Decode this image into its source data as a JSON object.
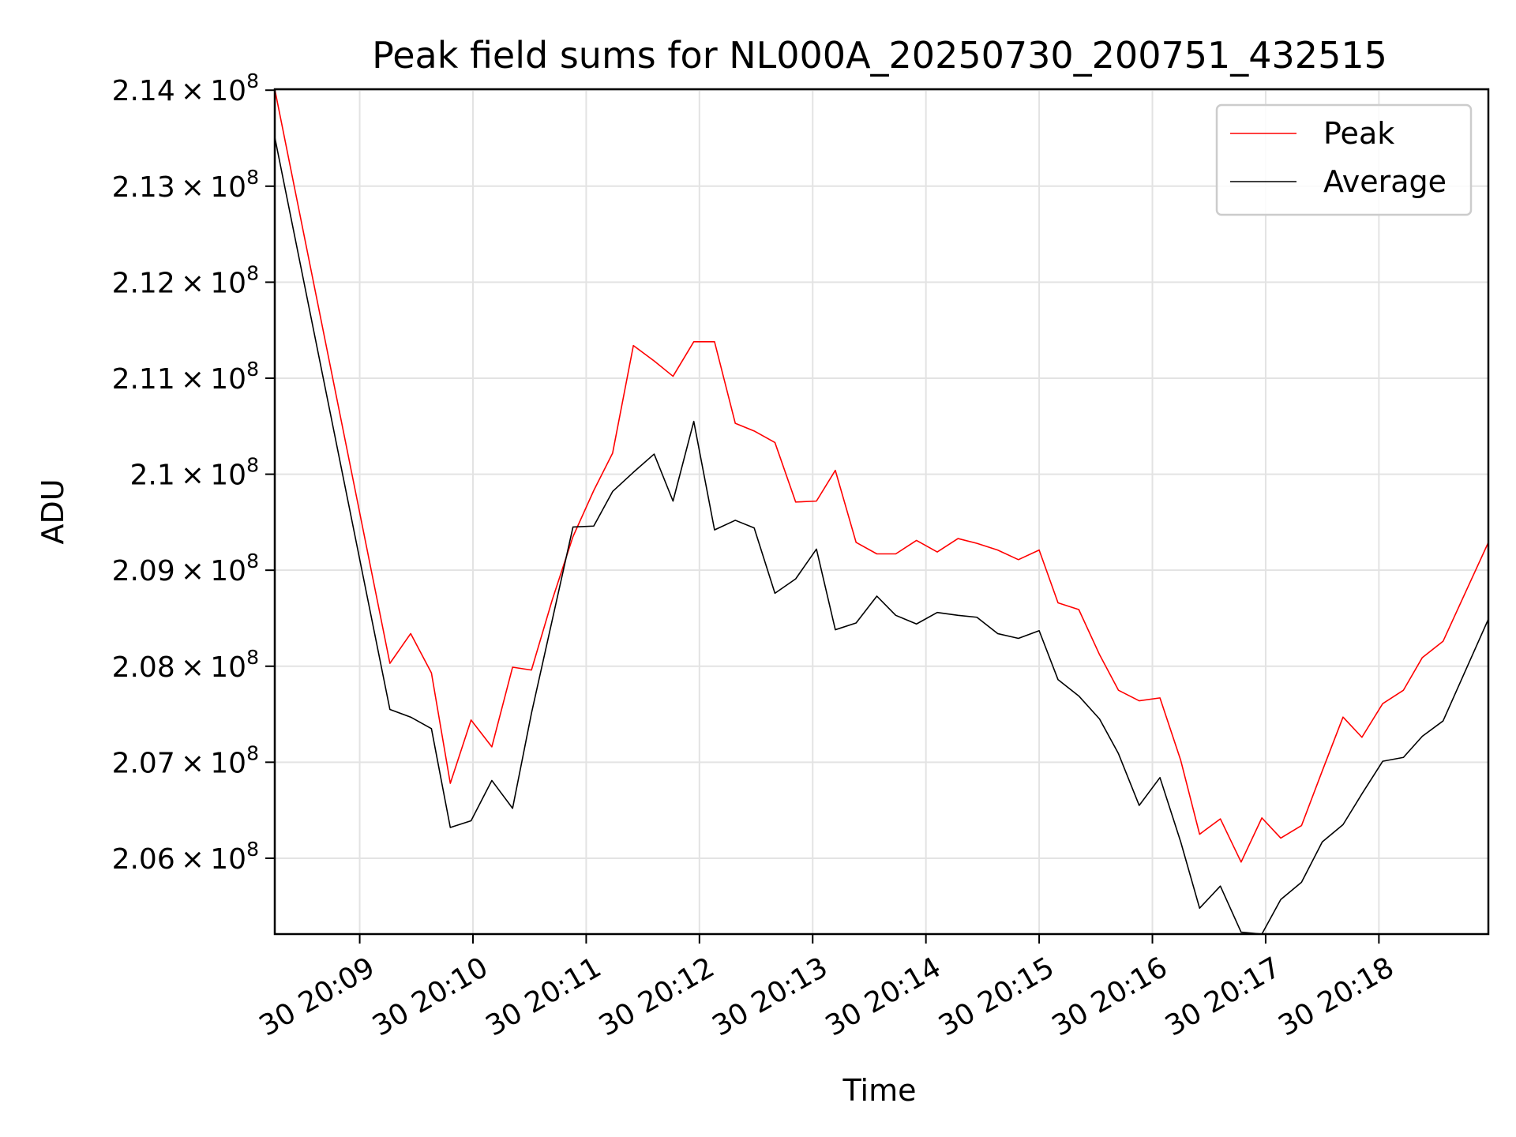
{
  "chart_data": {
    "type": "line",
    "title": "Peak field sums for NL000A_20250730_200751_432515",
    "xlabel": "Time",
    "ylabel": "ADU",
    "x_ticks": [
      "30 20:09",
      "30 20:10",
      "30 20:11",
      "30 20:12",
      "30 20:13",
      "30 20:14",
      "30 20:15",
      "30 20:16",
      "30 20:17",
      "30 20:18"
    ],
    "y_ticks": [
      {
        "value": 206000000.0,
        "mantissa": "2.06",
        "exp": "8"
      },
      {
        "value": 207000000.0,
        "mantissa": "2.07",
        "exp": "8"
      },
      {
        "value": 208000000.0,
        "mantissa": "2.08",
        "exp": "8"
      },
      {
        "value": 209000000.0,
        "mantissa": "2.09",
        "exp": "8"
      },
      {
        "value": 210000000.0,
        "mantissa": "2.1",
        "exp": "8"
      },
      {
        "value": 211000000.0,
        "mantissa": "2.11",
        "exp": "8"
      },
      {
        "value": 212000000.0,
        "mantissa": "2.12",
        "exp": "8"
      },
      {
        "value": 213000000.0,
        "mantissa": "2.13",
        "exp": "8"
      },
      {
        "value": 214000000.0,
        "mantissa": "2.14",
        "exp": "8"
      }
    ],
    "xlim": [
      "20:08:15",
      "20:18:58"
    ],
    "ylim": [
      205210000.0,
      214010000.0
    ],
    "grid": true,
    "legend_position": "top-right",
    "x": [
      "20:08:15",
      "20:09:16",
      "20:09:27",
      "20:09:38",
      "20:09:48",
      "20:09:59",
      "20:10:10",
      "20:10:21",
      "20:10:31",
      "20:10:42",
      "20:10:53",
      "20:11:04",
      "20:11:14",
      "20:11:25",
      "20:11:36",
      "20:11:46",
      "20:11:57",
      "20:12:08",
      "20:12:19",
      "20:12:29",
      "20:12:40",
      "20:12:51",
      "20:13:02",
      "20:13:12",
      "20:13:23",
      "20:13:34",
      "20:13:44",
      "20:13:55",
      "20:14:06",
      "20:14:17",
      "20:14:27",
      "20:14:38",
      "20:14:49",
      "20:15:00",
      "20:15:10",
      "20:15:21",
      "20:15:32",
      "20:15:42",
      "20:15:53",
      "20:16:04",
      "20:16:15",
      "20:16:25",
      "20:16:36",
      "20:16:47",
      "20:16:58",
      "20:17:08",
      "20:17:19",
      "20:17:30",
      "20:17:41",
      "20:17:51",
      "20:18:02",
      "20:18:13",
      "20:18:23",
      "20:18:34",
      "20:18:58"
    ],
    "series": [
      {
        "name": "Peak",
        "color": "#ff0000",
        "values": [
          214010000.0,
          208030000.0,
          208340000.0,
          207930000.0,
          206780000.0,
          207440000.0,
          207160000.0,
          207990000.0,
          207960000.0,
          208690000.0,
          209350000.0,
          209830000.0,
          210220000.0,
          211340000.0,
          211180000.0,
          211020000.0,
          211380000.0,
          211380000.0,
          210530000.0,
          210450000.0,
          210330000.0,
          209710000.0,
          209720000.0,
          210040000.0,
          209290000.0,
          209170000.0,
          209170000.0,
          209310000.0,
          209190000.0,
          209330000.0,
          209280000.0,
          209210000.0,
          209110000.0,
          209210000.0,
          208660000.0,
          208590000.0,
          208120000.0,
          207750000.0,
          207640000.0,
          207670000.0,
          207020000.0,
          206250000.0,
          206410000.0,
          205960000.0,
          206420000.0,
          206210000.0,
          206340000.0,
          206910000.0,
          207470000.0,
          207260000.0,
          207610000.0,
          207750000.0,
          208090000.0,
          208260000.0,
          209290000.0
        ]
      },
      {
        "name": "Average",
        "color": "#000000",
        "values": [
          213510000.0,
          207550000.0,
          207470000.0,
          207350000.0,
          206320000.0,
          206390000.0,
          206810000.0,
          206520000.0,
          207510000.0,
          208480000.0,
          209450000.0,
          209460000.0,
          209820000.0,
          210020000.0,
          210210000.0,
          209720000.0,
          210550000.0,
          209420000.0,
          209520000.0,
          209440000.0,
          208760000.0,
          208910000.0,
          209220000.0,
          208380000.0,
          208450000.0,
          208730000.0,
          208530000.0,
          208440000.0,
          208560000.0,
          208530000.0,
          208510000.0,
          208340000.0,
          208290000.0,
          208370000.0,
          207860000.0,
          207690000.0,
          207450000.0,
          207090000.0,
          206550000.0,
          206840000.0,
          206170000.0,
          205480000.0,
          205710000.0,
          205230000.0,
          205210000.0,
          205570000.0,
          205750000.0,
          206170000.0,
          206350000.0,
          206670000.0,
          207010000.0,
          207050000.0,
          207270000.0,
          207430000.0,
          208490000.0
        ]
      }
    ]
  }
}
